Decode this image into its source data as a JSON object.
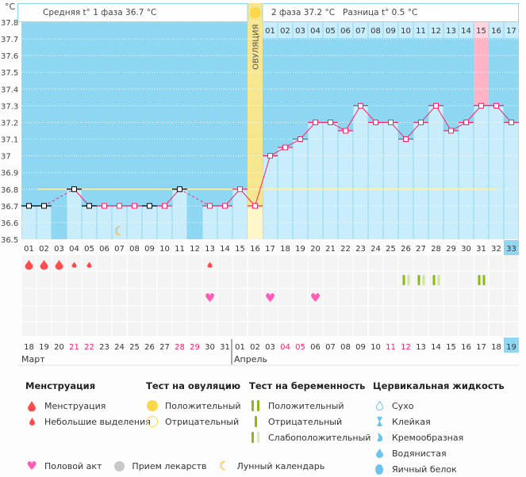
{
  "header": {
    "phase1": "Средняя t° 1 фаза 36.7 °C",
    "phase2": "2 фаза 37.2 °C",
    "diff": "Разница t° 0.5 °C",
    "unit": "°C",
    "ovulation_label": "ОВУЛЯЦИЯ"
  },
  "chart_data": {
    "type": "line",
    "ylim": [
      36.5,
      37.8
    ],
    "yticks": [
      "36.5",
      "36.6",
      "36.7",
      "36.8",
      "36.9",
      "37",
      "37.1",
      "37.2",
      "37.3",
      "37.4",
      "37.5",
      "37.6",
      "37.7",
      "37.8"
    ],
    "cycle_days": [
      "01",
      "02",
      "03",
      "04",
      "05",
      "06",
      "07",
      "08",
      "09",
      "10",
      "11",
      "12",
      "13",
      "14",
      "15",
      "16",
      "17",
      "18",
      "19",
      "20",
      "21",
      "22",
      "23",
      "24",
      "25",
      "26",
      "27",
      "28",
      "29",
      "30",
      "31",
      "32",
      "33"
    ],
    "temperatures": [
      36.7,
      36.7,
      null,
      36.8,
      36.7,
      36.7,
      36.7,
      36.7,
      36.7,
      36.7,
      36.8,
      null,
      36.7,
      36.7,
      36.8,
      36.7,
      37.0,
      37.05,
      37.1,
      37.2,
      37.2,
      37.15,
      37.3,
      37.2,
      37.2,
      37.1,
      37.2,
      37.3,
      37.15,
      37.2,
      37.3,
      37.3,
      37.2
    ],
    "black_marker_days": [
      1,
      2,
      4,
      5,
      9,
      11
    ],
    "coverline": 36.8,
    "coverline_range": [
      2,
      32
    ],
    "ovulation_day": 16,
    "phase2_days": [
      "01",
      "02",
      "03",
      "04",
      "05",
      "06",
      "07",
      "08",
      "09",
      "10",
      "11",
      "12",
      "13",
      "14",
      "15",
      "16",
      "17"
    ],
    "highlight_day": 31,
    "current_day": 33,
    "grid": true,
    "dates": [
      "18",
      "19",
      "20",
      "21",
      "22",
      "23",
      "24",
      "25",
      "26",
      "27",
      "28",
      "29",
      "30",
      "31",
      "01",
      "02",
      "03",
      "04",
      "05",
      "06",
      "07",
      "08",
      "09",
      "10",
      "11",
      "12",
      "13",
      "14",
      "15",
      "16",
      "17",
      "18",
      "19"
    ],
    "weekend_date_indexes": [
      3,
      4,
      10,
      11,
      17,
      18,
      24,
      25,
      32
    ],
    "months": [
      "Март",
      "Апрель"
    ],
    "menstruation": {
      "heavy": [
        1,
        2,
        3
      ],
      "light": [
        4,
        5,
        13
      ]
    },
    "intercourse_days": [
      13,
      17,
      20
    ],
    "moon_day": 7,
    "pregnancy_tests": {
      "weak_positive": [
        26,
        27,
        28
      ],
      "positive": [
        31
      ]
    }
  },
  "colors": {
    "bg": "#8ed7f2",
    "bar": "#c9edfb",
    "line": "#ff1f66",
    "ovulation": "#f6e68e",
    "highlight": "#ffb3c7",
    "menses": "#ff4b4b",
    "heart": "#ff5cb8",
    "test": "#8cba10",
    "test_light": "#cfe39a",
    "moon": "#f39c12"
  },
  "legend": {
    "menstruation": {
      "title": "Менструация",
      "items": [
        "Менструация",
        "Небольшие выделения"
      ]
    },
    "ovulation_test": {
      "title": "Тест на овуляцию",
      "items": [
        "Положительный",
        "Отрицательный"
      ]
    },
    "pregnancy_test": {
      "title": "Тест на беременность",
      "items": [
        "Положительный",
        "Отрицательный",
        "Слабоположительный"
      ]
    },
    "cervical": {
      "title": "Цервикальная жидкость",
      "items": [
        "Сухо",
        "Клейкая",
        "Кремообразная",
        "Водянистая",
        "Яичный белок"
      ]
    },
    "other": [
      "Половой акт",
      "Прием лекарств",
      "Лунный календарь"
    ]
  }
}
